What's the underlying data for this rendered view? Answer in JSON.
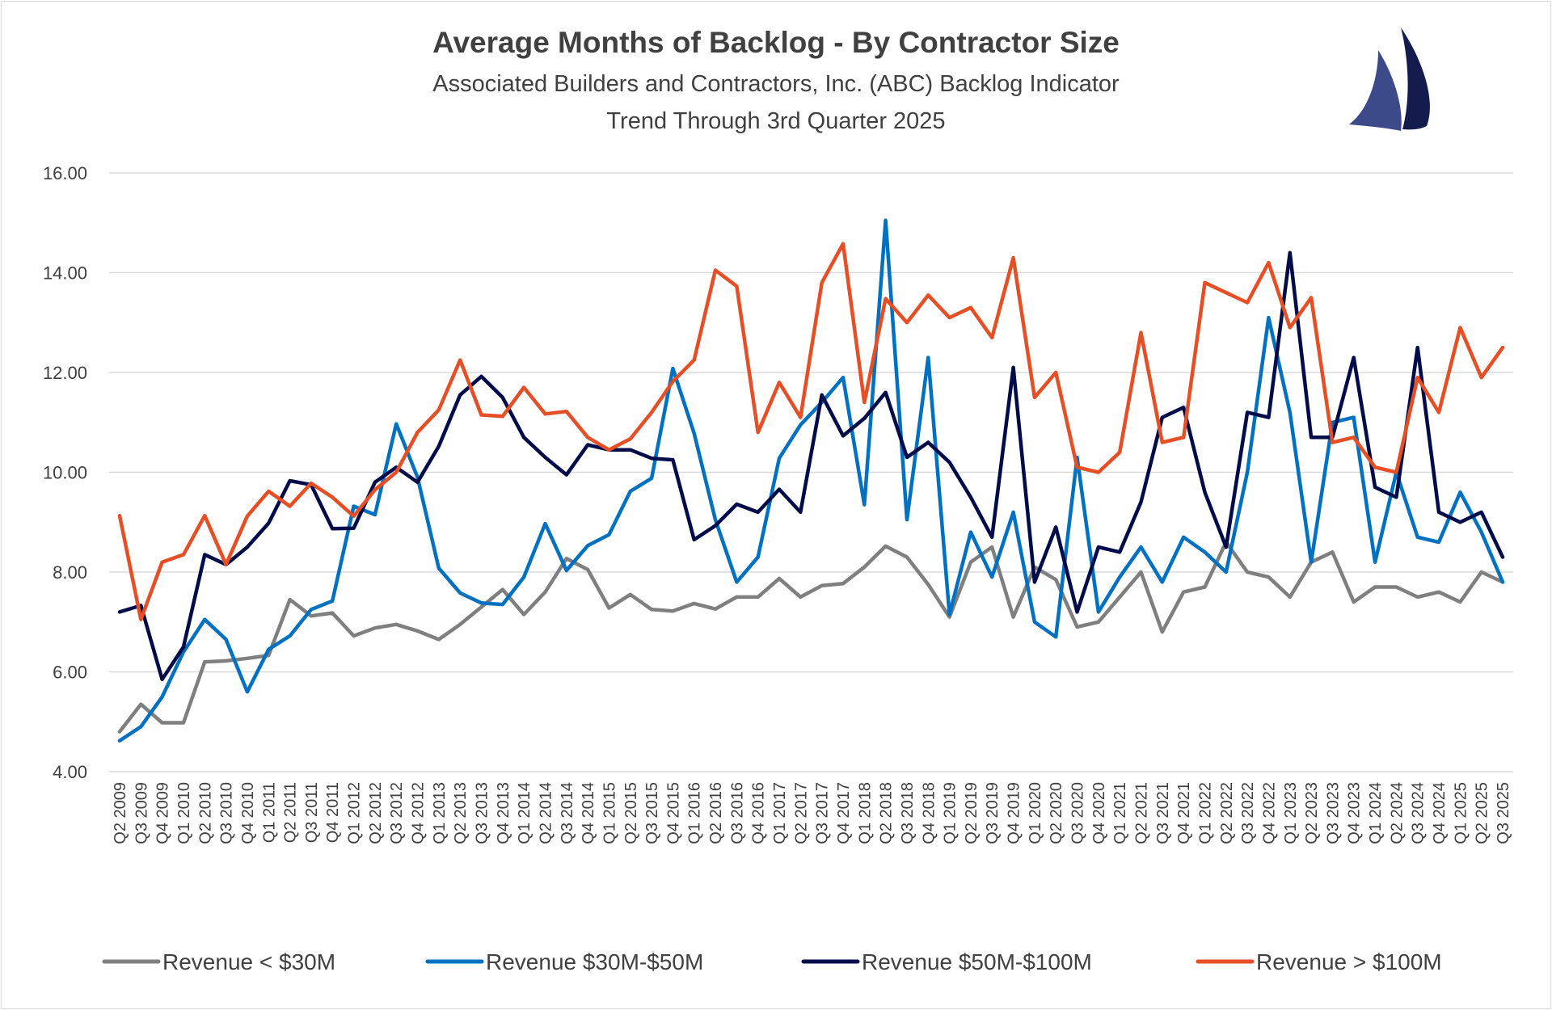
{
  "chart_data": {
    "type": "line",
    "title": "Average Months of Backlog - By Contractor Size",
    "subtitle": [
      "Associated Builders and Contractors, Inc. (ABC) Backlog Indicator",
      "Trend Through 3rd Quarter 2025"
    ],
    "xlabel": "",
    "ylabel": "",
    "ylim": [
      4,
      16
    ],
    "yticks": [
      "4.00",
      "6.00",
      "8.00",
      "10.00",
      "12.00",
      "14.00",
      "16.00"
    ],
    "grid": true,
    "legend_position": "bottom",
    "categories": [
      "Q2 2009",
      "Q3 2009",
      "Q4 2009",
      "Q1 2010",
      "Q2 2010",
      "Q3 2010",
      "Q4 2010",
      "Q1 2011",
      "Q2 2011",
      "Q3 2011",
      "Q4 2011",
      "Q1 2012",
      "Q2 2012",
      "Q3 2012",
      "Q4 2012",
      "Q1 2013",
      "Q2 2013",
      "Q3 2013",
      "Q4 2013",
      "Q1 2014",
      "Q2 2014",
      "Q3 2014",
      "Q4 2014",
      "Q1 2015",
      "Q2 2015",
      "Q3 2015",
      "Q4 2015",
      "Q1 2016",
      "Q2 2016",
      "Q3 2016",
      "Q4 2016",
      "Q1 2017",
      "Q2 2017",
      "Q3 2017",
      "Q4 2017",
      "Q1 2018",
      "Q2 2018",
      "Q3 2018",
      "Q4 2018",
      "Q1 2019",
      "Q2 2019",
      "Q3 2019",
      "Q4 2019",
      "Q1 2020",
      "Q2 2020",
      "Q3 2020",
      "Q4 2020",
      "Q1 2021",
      "Q2 2021",
      "Q3 2021",
      "Q4 2021",
      "Q1 2022",
      "Q2 2022",
      "Q3 2022",
      "Q4 2022",
      "Q1 2023",
      "Q2 2023",
      "Q3 2023",
      "Q4 2023",
      "Q1 2024",
      "Q2 2024",
      "Q3 2024",
      "Q4 2024",
      "Q1 2025",
      "Q2 2025",
      "Q3 2025"
    ],
    "series": [
      {
        "name": "Revenue < $30M",
        "color": "#7F7F7F",
        "values": [
          4.8,
          5.35,
          4.98,
          4.98,
          6.2,
          6.22,
          6.27,
          6.33,
          7.45,
          7.12,
          7.18,
          6.72,
          6.88,
          6.95,
          6.82,
          6.65,
          6.95,
          7.3,
          7.65,
          7.15,
          7.6,
          8.27,
          8.05,
          7.28,
          7.55,
          7.25,
          7.22,
          7.37,
          7.26,
          7.5,
          7.5,
          7.87,
          7.5,
          7.73,
          7.77,
          8.1,
          8.52,
          8.3,
          7.75,
          7.1,
          8.2,
          8.5,
          7.1,
          8.1,
          7.85,
          6.9,
          7.0,
          7.5,
          8.0,
          6.8,
          7.6,
          7.7,
          8.6,
          8.0,
          7.9,
          7.5,
          8.2,
          8.4,
          7.4,
          7.7,
          7.7,
          7.5,
          7.6,
          7.4,
          8.0,
          7.8
        ]
      },
      {
        "name": "Revenue $30M-$50M",
        "color": "#0070C0",
        "values": [
          4.62,
          4.9,
          5.5,
          6.4,
          7.05,
          6.65,
          5.6,
          6.45,
          6.72,
          7.25,
          7.42,
          9.32,
          9.15,
          10.97,
          9.9,
          8.08,
          7.58,
          7.38,
          7.35,
          7.9,
          8.97,
          8.03,
          8.53,
          8.75,
          9.62,
          9.88,
          12.08,
          10.78,
          9.05,
          7.8,
          8.3,
          10.28,
          10.95,
          11.4,
          11.9,
          9.35,
          15.05,
          9.05,
          12.3,
          7.15,
          8.8,
          7.9,
          9.2,
          7.0,
          6.7,
          10.3,
          7.2,
          7.9,
          8.5,
          7.8,
          8.7,
          8.4,
          8.0,
          10.0,
          13.1,
          11.2,
          8.2,
          11.0,
          11.1,
          8.2,
          10.0,
          8.7,
          8.6,
          9.6,
          8.8,
          7.8
        ]
      },
      {
        "name": "Revenue $50M-$100M",
        "color": "#000C4A",
        "values": [
          7.2,
          7.33,
          5.85,
          6.5,
          8.35,
          8.15,
          8.5,
          8.98,
          9.83,
          9.75,
          8.87,
          8.88,
          9.8,
          10.1,
          9.8,
          10.52,
          11.55,
          11.92,
          11.5,
          10.7,
          10.3,
          9.95,
          10.55,
          10.45,
          10.45,
          10.28,
          10.25,
          8.65,
          8.93,
          9.36,
          9.2,
          9.66,
          9.2,
          11.55,
          10.73,
          11.08,
          11.6,
          10.3,
          10.6,
          10.2,
          9.5,
          8.7,
          12.1,
          7.8,
          8.9,
          7.2,
          8.5,
          8.4,
          9.4,
          11.1,
          11.3,
          9.6,
          8.5,
          11.2,
          11.1,
          14.4,
          10.7,
          10.7,
          12.3,
          9.7,
          9.5,
          12.5,
          9.2,
          9.0,
          9.2,
          8.3
        ]
      },
      {
        "name": "Revenue > $100M",
        "color": "#E64E25",
        "values": [
          9.13,
          7.05,
          8.2,
          8.35,
          9.13,
          8.15,
          9.12,
          9.62,
          9.32,
          9.78,
          9.5,
          9.12,
          9.65,
          10.0,
          10.8,
          11.25,
          12.25,
          11.15,
          11.12,
          11.7,
          11.17,
          11.22,
          10.7,
          10.45,
          10.67,
          11.2,
          11.82,
          12.25,
          14.05,
          13.73,
          10.8,
          11.8,
          11.1,
          13.8,
          14.58,
          11.4,
          13.48,
          13.0,
          13.55,
          13.1,
          13.3,
          12.7,
          14.3,
          11.5,
          12.0,
          10.1,
          10.0,
          10.4,
          12.8,
          10.6,
          10.7,
          13.8,
          13.6,
          13.4,
          14.2,
          12.9,
          13.5,
          10.6,
          10.7,
          10.1,
          10.0,
          11.9,
          11.2,
          12.9,
          11.9,
          12.5
        ]
      }
    ]
  },
  "logo": {
    "icon": "sailboat-logo",
    "colors": [
      "#3D4A8A",
      "#141B4D"
    ]
  }
}
